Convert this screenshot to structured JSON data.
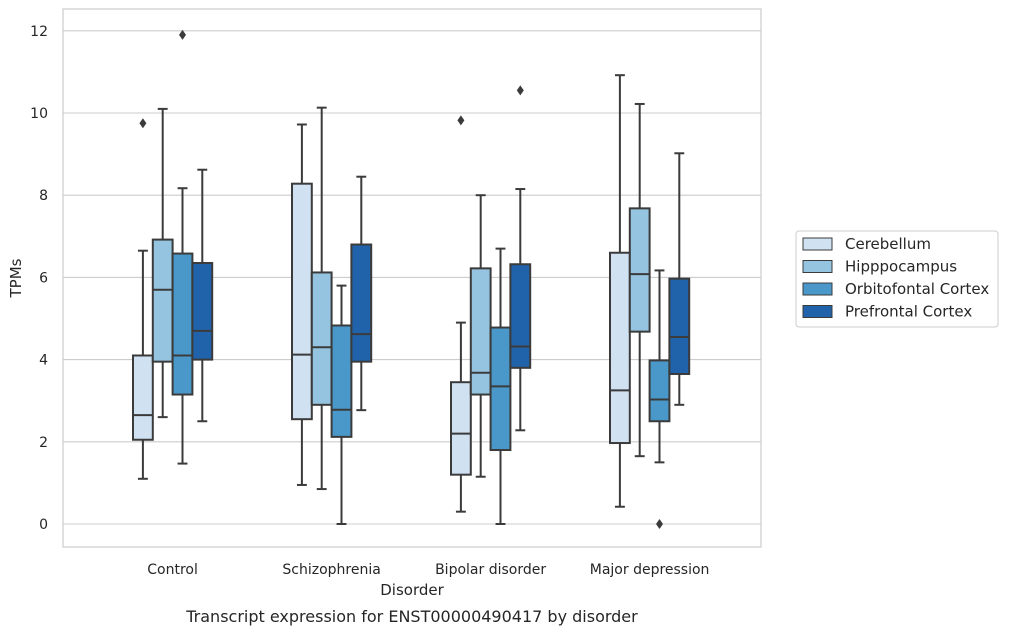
{
  "chart_data": {
    "type": "box",
    "xlabel": "Disorder",
    "ylabel": "TPMs",
    "caption": "Transcript expression for ENST00000490417 by disorder",
    "ylim": [
      -0.6,
      12.5
    ],
    "yticks": [
      0,
      2,
      4,
      6,
      8,
      10,
      12
    ],
    "grid": "horizontal",
    "legend_position": "right",
    "categories": [
      "Control",
      "Schizophrenia",
      "Bipolar disorder",
      "Major depression"
    ],
    "series": [
      {
        "name": "Cerebellum",
        "color": "#d0e1f2",
        "boxes": [
          {
            "whisker_low": 1.1,
            "q1": 2.05,
            "median": 2.65,
            "q3": 4.1,
            "whisker_high": 6.65,
            "outliers": [
              9.75
            ]
          },
          {
            "whisker_low": 0.95,
            "q1": 2.55,
            "median": 4.12,
            "q3": 8.28,
            "whisker_high": 9.72,
            "outliers": []
          },
          {
            "whisker_low": 0.3,
            "q1": 1.2,
            "median": 2.2,
            "q3": 3.45,
            "whisker_high": 4.9,
            "outliers": [
              9.82
            ]
          },
          {
            "whisker_low": 0.42,
            "q1": 1.97,
            "median": 3.25,
            "q3": 6.6,
            "whisker_high": 10.92,
            "outliers": []
          }
        ]
      },
      {
        "name": "Hipppocampus",
        "color": "#94c4df",
        "boxes": [
          {
            "whisker_low": 2.6,
            "q1": 3.95,
            "median": 5.7,
            "q3": 6.92,
            "whisker_high": 10.1,
            "outliers": []
          },
          {
            "whisker_low": 0.85,
            "q1": 2.9,
            "median": 4.3,
            "q3": 6.12,
            "whisker_high": 10.13,
            "outliers": []
          },
          {
            "whisker_low": 1.15,
            "q1": 3.15,
            "median": 3.68,
            "q3": 6.22,
            "whisker_high": 8.0,
            "outliers": []
          },
          {
            "whisker_low": 1.65,
            "q1": 4.68,
            "median": 6.08,
            "q3": 7.68,
            "whisker_high": 10.22,
            "outliers": []
          }
        ]
      },
      {
        "name": "Orbitofontal Cortex",
        "color": "#4a98c9",
        "boxes": [
          {
            "whisker_low": 1.47,
            "q1": 3.15,
            "median": 4.1,
            "q3": 6.58,
            "whisker_high": 8.17,
            "outliers": [
              11.9
            ]
          },
          {
            "whisker_low": 0.0,
            "q1": 2.12,
            "median": 2.78,
            "q3": 4.83,
            "whisker_high": 5.8,
            "outliers": []
          },
          {
            "whisker_low": 0.0,
            "q1": 1.8,
            "median": 3.35,
            "q3": 4.78,
            "whisker_high": 6.7,
            "outliers": []
          },
          {
            "whisker_low": 1.5,
            "q1": 2.5,
            "median": 3.03,
            "q3": 3.98,
            "whisker_high": 6.17,
            "outliers": [
              0.0
            ]
          }
        ]
      },
      {
        "name": "Prefrontal Cortex",
        "color": "#2163aa",
        "boxes": [
          {
            "whisker_low": 2.5,
            "q1": 4.0,
            "median": 4.7,
            "q3": 6.35,
            "whisker_high": 8.62,
            "outliers": []
          },
          {
            "whisker_low": 2.77,
            "q1": 3.95,
            "median": 4.62,
            "q3": 6.8,
            "whisker_high": 8.45,
            "outliers": []
          },
          {
            "whisker_low": 2.28,
            "q1": 3.8,
            "median": 4.32,
            "q3": 6.32,
            "whisker_high": 8.15,
            "outliers": [
              10.55
            ]
          },
          {
            "whisker_low": 2.9,
            "q1": 3.65,
            "median": 4.55,
            "q3": 5.97,
            "whisker_high": 9.02,
            "outliers": []
          }
        ]
      }
    ]
  }
}
